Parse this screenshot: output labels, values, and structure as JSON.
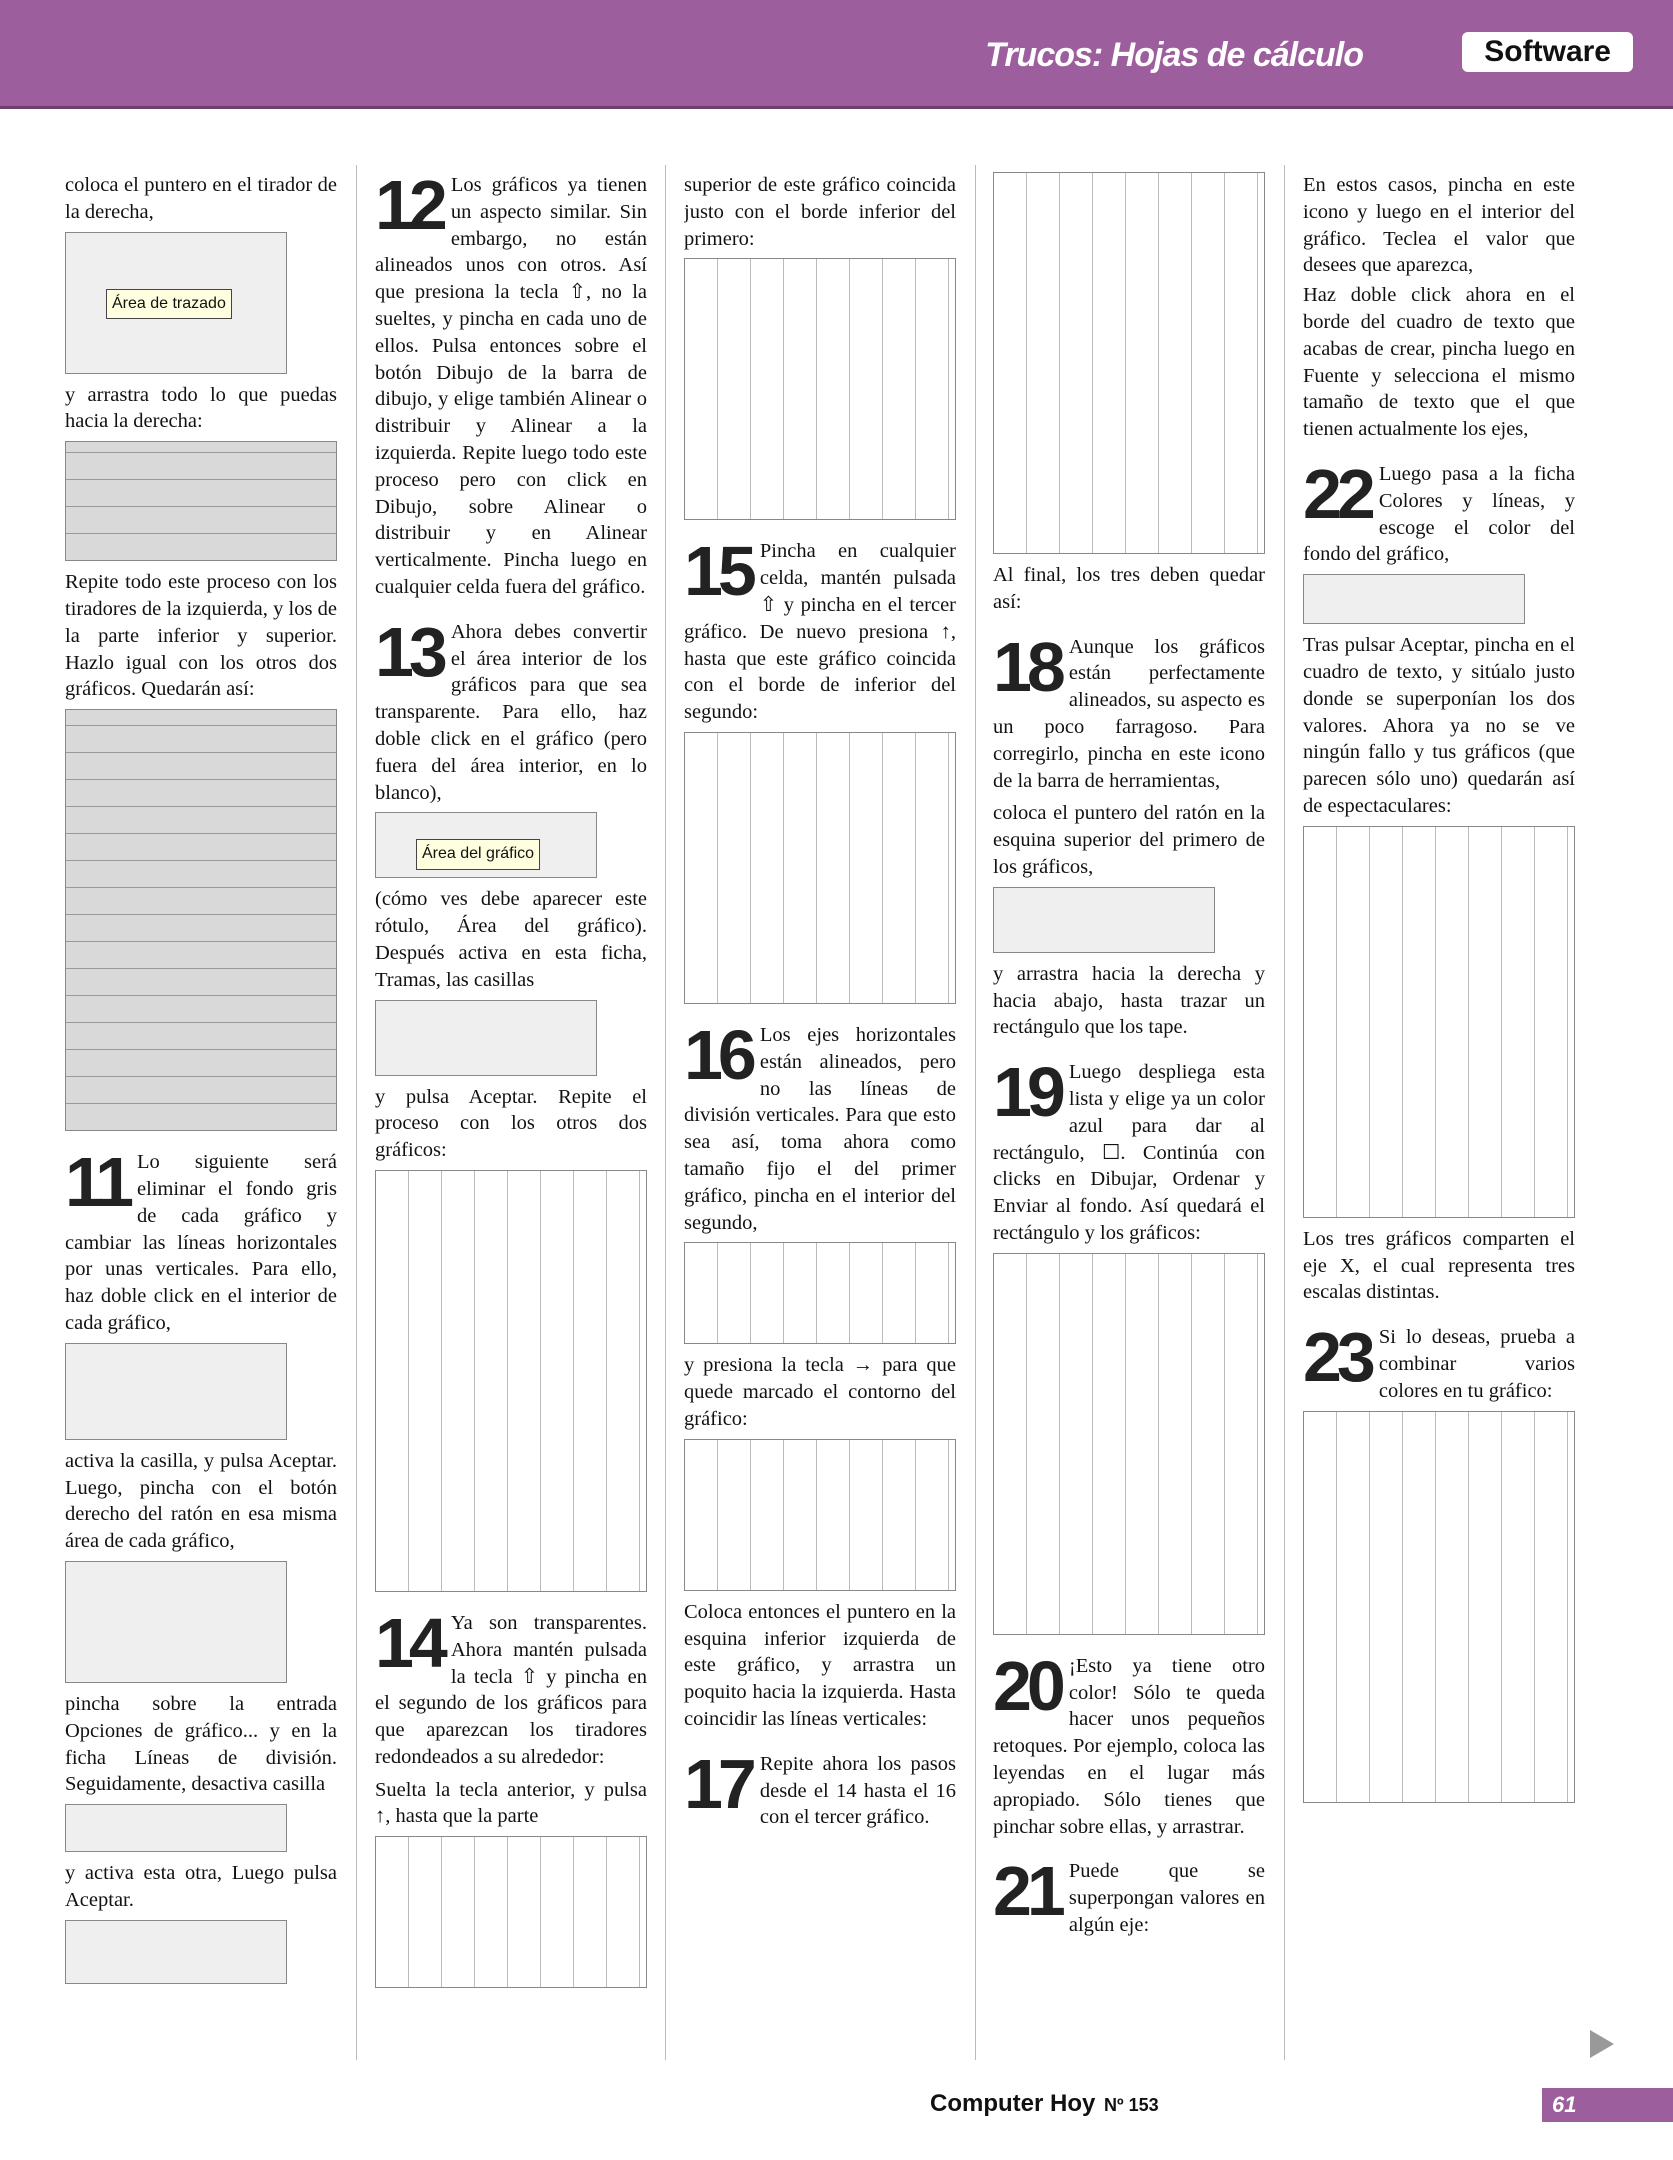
{
  "header": {
    "section": "Trucos: Hojas de cálculo",
    "tag": "Software"
  },
  "figure_labels": {
    "plot_area": "Área de trazado",
    "chart_area": "Área del gráfico"
  },
  "columns": [
    [
      "coloca el puntero en el tirador de la derecha,",
      "y arrastra todo lo que puedas hacia la derecha:",
      "Repite todo este proceso con los tiradores de la izquierda, y los de la parte inferior y superior. Hazlo igual con los otros dos gráficos. Quedarán así:",
      {
        "number": "11",
        "text": "Lo siguiente será eliminar el fondo gris de cada gráfico y cambiar las líneas horizontales por unas verticales. Para ello, haz doble click en el interior de cada gráfico,"
      },
      "activa la casilla, y pulsa Aceptar. Luego, pincha con el botón derecho del ratón en esa misma área de cada gráfico,",
      "pincha sobre la entrada Opciones de gráfico... y en la ficha Líneas de división. Seguidamente, desactiva casilla",
      "y activa esta otra, Luego pulsa Aceptar."
    ],
    [
      {
        "number": "12",
        "text": "Los gráficos ya tienen un aspecto similar. Sin embargo, no están alineados unos con otros. Así que presiona la tecla ⇧, no la sueltes, y pincha en cada uno de ellos. Pulsa entonces sobre el botón Dibujo de la barra de dibujo, y elige también Alinear o distribuir y Alinear a la izquierda. Repite luego todo este proceso pero con click en Dibujo, sobre Alinear o distribuir y en Alinear verticalmente. Pincha luego en cualquier celda fuera del gráfico."
      },
      {
        "number": "13",
        "text": "Ahora debes convertir el área interior de los gráficos para que sea transparente. Para ello, haz doble click en el gráfico (pero fuera del área interior, en lo blanco),"
      },
      "(cómo ves debe aparecer este rótulo, Área del gráfico). Después activa en esta ficha, Tramas, las casillas",
      "y pulsa Aceptar. Repite el proceso con los otros dos gráficos:",
      {
        "number": "14",
        "text": "Ya son transparentes. Ahora mantén pulsada la tecla ⇧ y pincha en el segundo de los gráficos para que aparezcan los tiradores redondeados a su alrededor:"
      },
      "Suelta la tecla anterior, y pulsa ↑, hasta que la parte"
    ],
    [
      "superior de este gráfico coincida justo con el borde inferior del primero:",
      {
        "number": "15",
        "text": "Pincha en cualquier celda, mantén pulsada ⇧ y pincha en el tercer gráfico. De nuevo presiona ↑, hasta que este gráfico coincida con el borde de inferior del segundo:"
      },
      {
        "number": "16",
        "text": "Los ejes horizontales están alineados, pero no las líneas de división verticales. Para que esto sea así, toma ahora como tamaño fijo el del primer gráfico, pincha en el interior del segundo,"
      },
      "y presiona la tecla → para que quede marcado el contorno del gráfico:",
      "Coloca entonces el puntero en la esquina inferior izquierda de este gráfico, y arrastra un poquito hacia la izquierda. Hasta coincidir las líneas verticales:",
      {
        "number": "17",
        "text": "Repite ahora los pasos desde el 14 hasta el 16 con el tercer gráfico."
      }
    ],
    [
      "Al final, los tres deben quedar así:",
      {
        "number": "18",
        "text": "Aunque los gráficos están perfectamente alineados, su aspecto es un poco farragoso. Para corregirlo, pincha en este icono de la barra de herramientas,"
      },
      "coloca el puntero del ratón en la esquina superior del primero de los gráficos,",
      "y arrastra hacia la derecha y hacia abajo, hasta trazar un rectángulo que los tape.",
      {
        "number": "19",
        "text": "Luego despliega esta lista y elige ya un color azul para dar al rectángulo, ☐. Continúa con clicks en Dibujar, Ordenar y Enviar al fondo. Así quedará el rectángulo y los gráficos:"
      },
      {
        "number": "20",
        "text": "¡Esto ya tiene otro color! Sólo te queda hacer unos pequeños retoques. Por ejemplo, coloca las leyendas en el lugar más apropiado. Sólo tienes que pinchar sobre ellas, y arrastrar."
      },
      {
        "number": "21",
        "text": "Puede que se superpongan valores en algún eje:"
      }
    ],
    [
      "En estos casos, pincha en este icono y luego en el interior del gráfico. Teclea el valor que desees que aparezca,",
      "Haz doble click ahora en el borde del cuadro de texto que acabas de crear, pincha luego en Fuente y selecciona el mismo tamaño de texto que el que tienen actualmente los ejes,",
      {
        "number": "22",
        "text": "Luego pasa a la ficha Colores y líneas, y escoge el color del fondo del gráfico,"
      },
      "Tras pulsar Aceptar, pincha en el cuadro de texto, y sitúalo justo donde se superponían los dos valores. Ahora ya no se ve ningún fallo y tus gráficos (que parecen sólo uno) quedarán así de espectaculares:",
      "Los tres gráficos comparten el eje X, el cual representa tres escalas distintas.",
      {
        "number": "23",
        "text": "Si lo deseas, prueba a combinar varios colores en tu gráfico:"
      }
    ]
  ],
  "footer": {
    "brand": "Computer Hoy",
    "issue": "Nº 153",
    "page": "61"
  }
}
